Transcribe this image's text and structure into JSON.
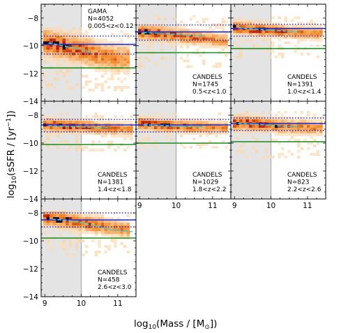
{
  "figure": {
    "xlabel_main": "log",
    "xlabel_sub": "10",
    "xlabel_rest": "(Mass / [M",
    "xlabel_sun": "⊙",
    "xlabel_end": "])",
    "ylabel_main": "log",
    "ylabel_sub": "10",
    "ylabel_rest": "(sSFR / [yr",
    "ylabel_sup": "−1",
    "ylabel_end": "])"
  },
  "colors": {
    "shade": "#e4e4e4",
    "shade_edge": "#888888",
    "median": "#1a2bd6",
    "percentile": "#1a2bd6",
    "running_median": "#29d6e6",
    "threshold": "#1a8a1a",
    "density_low": "#fde7c8",
    "density_mid": "#f2811c",
    "density_high": "#b01010",
    "density_peak": "#1a0a10"
  },
  "chart_data": [
    {
      "type": "heatmap",
      "survey": "GAMA",
      "count": "N=4052",
      "zrange": "0.005<z<0.12",
      "x_ticks": [],
      "y_ticks": [
        "−8",
        "−10",
        "−12",
        "−14"
      ],
      "xlim": [
        8.9,
        11.5
      ],
      "ylim": [
        -14,
        -7
      ],
      "shade_x": [
        8.9,
        10.0
      ],
      "density": {
        "ridge": [
          [
            9.0,
            -9.7
          ],
          [
            9.5,
            -10.0
          ],
          [
            10.0,
            -10.3
          ],
          [
            10.5,
            -10.7
          ],
          [
            11.0,
            -10.9
          ]
        ],
        "spread": 0.75,
        "cloud_x": [
          9.0,
          11.3
        ],
        "cloud_y": [
          -13.2,
          -8.7
        ]
      },
      "median": -9.9,
      "upper": -9.3,
      "lower": -10.6,
      "threshold": -11.6,
      "running_median": [
        [
          9.1,
          -9.8
        ],
        [
          9.5,
          -10.0
        ],
        [
          9.9,
          -10.2
        ],
        [
          10.3,
          -10.5
        ]
      ]
    },
    {
      "type": "heatmap",
      "survey": "CANDELS",
      "count": "N=1745",
      "zrange": "0.5<z<1.0",
      "x_ticks": [],
      "y_ticks": [],
      "xlim": [
        8.9,
        11.5
      ],
      "ylim": [
        -14,
        -7
      ],
      "shade_x": [
        8.9,
        10.0
      ],
      "density": {
        "ridge": [
          [
            9.0,
            -9.0
          ],
          [
            9.5,
            -9.1
          ],
          [
            10.0,
            -9.25
          ],
          [
            10.5,
            -9.4
          ],
          [
            11.2,
            -9.6
          ]
        ],
        "spread": 0.4,
        "cloud_x": [
          9.0,
          11.4
        ],
        "cloud_y": [
          -11.5,
          -7.8
        ]
      },
      "median": -9.0,
      "upper": -8.5,
      "lower": -9.6,
      "threshold": -10.5,
      "running_median": [
        [
          9.1,
          -9.05
        ],
        [
          9.6,
          -9.1
        ],
        [
          10.1,
          -9.2
        ],
        [
          10.8,
          -9.3
        ]
      ]
    },
    {
      "type": "heatmap",
      "survey": "CANDELS",
      "count": "N=1391",
      "zrange": "1.0<z<1.4",
      "x_ticks": [],
      "y_ticks": [],
      "xlim": [
        8.9,
        11.5
      ],
      "ylim": [
        -14,
        -7
      ],
      "shade_x": [
        8.9,
        10.0
      ],
      "density": {
        "ridge": [
          [
            9.0,
            -8.7
          ],
          [
            9.5,
            -8.8
          ],
          [
            10.0,
            -8.9
          ],
          [
            10.5,
            -9.0
          ],
          [
            11.2,
            -9.1
          ]
        ],
        "spread": 0.35,
        "cloud_x": [
          9.0,
          11.4
        ],
        "cloud_y": [
          -10.8,
          -7.8
        ]
      },
      "median": -8.75,
      "upper": -8.45,
      "lower": -9.3,
      "threshold": -10.2,
      "running_median": [
        [
          9.1,
          -8.7
        ],
        [
          9.6,
          -8.8
        ],
        [
          10.1,
          -8.9
        ],
        [
          10.8,
          -9.0
        ]
      ]
    },
    {
      "type": "heatmap",
      "survey": "CANDELS",
      "count": "N=1381",
      "zrange": "1.4<z<1.8",
      "x_ticks": [],
      "y_ticks": [
        "−8",
        "−10",
        "−12",
        "−14"
      ],
      "xlim": [
        8.9,
        11.5
      ],
      "ylim": [
        -14,
        -7
      ],
      "shade_x": [
        8.9,
        10.0
      ],
      "density": {
        "ridge": [
          [
            9.0,
            -8.7
          ],
          [
            9.5,
            -8.75
          ],
          [
            10.0,
            -8.8
          ],
          [
            10.5,
            -8.9
          ],
          [
            11.2,
            -9.0
          ]
        ],
        "spread": 0.35,
        "cloud_x": [
          9.0,
          11.4
        ],
        "cloud_y": [
          -10.5,
          -7.8
        ]
      },
      "median": -8.7,
      "upper": -8.3,
      "lower": -9.2,
      "threshold": -10.1,
      "running_median": [
        [
          9.1,
          -8.75
        ],
        [
          9.6,
          -8.8
        ],
        [
          10.1,
          -8.85
        ],
        [
          10.8,
          -8.9
        ]
      ]
    },
    {
      "type": "heatmap",
      "survey": "CANDELS",
      "count": "N=1029",
      "zrange": "1.8<z<2.2",
      "x_ticks": [
        "9",
        "10",
        "11"
      ],
      "y_ticks": [],
      "xlim": [
        8.9,
        11.5
      ],
      "ylim": [
        -14,
        -7
      ],
      "shade_x": [
        8.9,
        10.0
      ],
      "density": {
        "ridge": [
          [
            9.0,
            -8.6
          ],
          [
            9.5,
            -8.7
          ],
          [
            10.0,
            -8.75
          ],
          [
            10.5,
            -8.85
          ],
          [
            11.2,
            -8.9
          ]
        ],
        "spread": 0.35,
        "cloud_x": [
          9.0,
          11.4
        ],
        "cloud_y": [
          -10.3,
          -7.8
        ]
      },
      "median": -8.7,
      "upper": -8.3,
      "lower": -9.2,
      "threshold": -10.0,
      "running_median": [
        [
          9.1,
          -8.7
        ],
        [
          9.6,
          -8.75
        ],
        [
          10.1,
          -8.8
        ],
        [
          10.8,
          -8.85
        ]
      ]
    },
    {
      "type": "heatmap",
      "survey": "CANDELS",
      "count": "N=823",
      "zrange": "2.2<z<2.6",
      "x_ticks": [
        "9",
        "10",
        "11"
      ],
      "y_ticks": [],
      "xlim": [
        8.9,
        11.5
      ],
      "ylim": [
        -14,
        -7
      ],
      "shade_x": [
        8.9,
        10.0
      ],
      "density": {
        "ridge": [
          [
            9.0,
            -8.55
          ],
          [
            9.5,
            -8.6
          ],
          [
            10.0,
            -8.7
          ],
          [
            10.5,
            -8.8
          ],
          [
            11.2,
            -8.9
          ]
        ],
        "spread": 0.4,
        "cloud_x": [
          9.0,
          11.4
        ],
        "cloud_y": [
          -11.0,
          -7.8
        ]
      },
      "median": -8.6,
      "upper": -8.2,
      "lower": -9.1,
      "threshold": -9.9,
      "running_median": [
        [
          9.1,
          -8.6
        ],
        [
          9.6,
          -8.65
        ],
        [
          10.1,
          -8.75
        ],
        [
          10.8,
          -8.85
        ]
      ]
    },
    {
      "type": "heatmap",
      "survey": "CANDELS",
      "count": "N=458",
      "zrange": "2.6<z<3.0",
      "x_ticks": [
        "9",
        "10",
        "11"
      ],
      "y_ticks": [
        "−8",
        "−10",
        "−12",
        "−14"
      ],
      "xlim": [
        8.9,
        11.5
      ],
      "ylim": [
        -14,
        -7
      ],
      "shade_x": [
        8.9,
        10.0
      ],
      "density": {
        "ridge": [
          [
            9.0,
            -8.3
          ],
          [
            9.5,
            -8.5
          ],
          [
            10.0,
            -8.7
          ],
          [
            10.5,
            -8.9
          ],
          [
            11.2,
            -9.2
          ]
        ],
        "spread": 0.45,
        "cloud_x": [
          9.0,
          11.3
        ],
        "cloud_y": [
          -11.0,
          -7.9
        ]
      },
      "median": -8.5,
      "upper": -8.0,
      "lower": -9.0,
      "threshold": -9.8,
      "running_median": [
        [
          9.2,
          -8.45
        ],
        [
          9.7,
          -8.55
        ],
        [
          10.2,
          -8.8
        ],
        [
          10.8,
          -9.2
        ],
        [
          11.4,
          -9.35
        ]
      ]
    }
  ]
}
